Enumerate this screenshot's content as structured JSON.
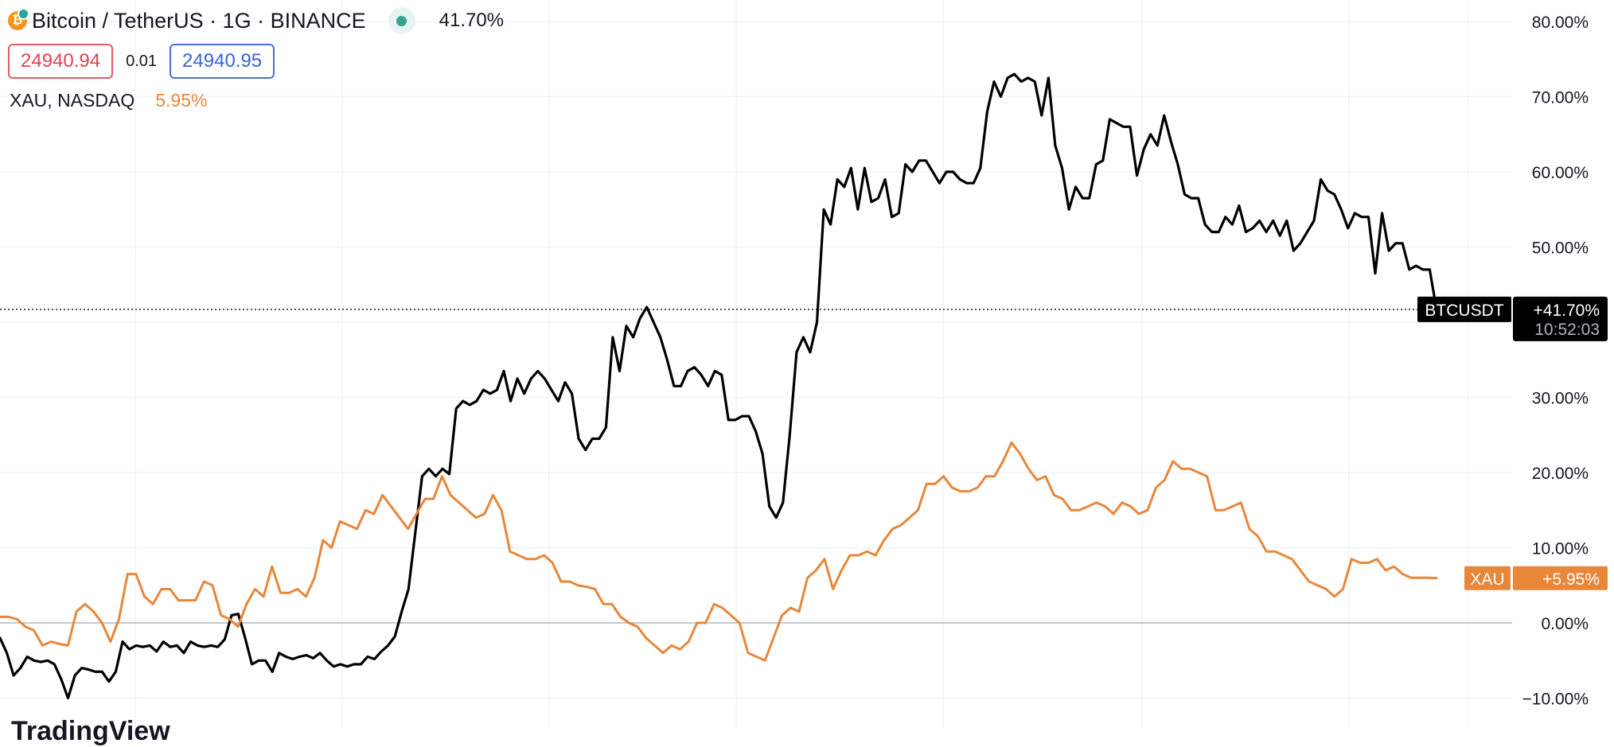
{
  "header": {
    "symbol_title": "Bitcoin / TetherUS · 1G · BINANCE",
    "change": "41.70%",
    "bid": "24940.94",
    "spread": "0.01",
    "ask": "24940.95",
    "compare_name": "XAU, NASDAQ",
    "compare_change": "5.95%",
    "btc_icon_glyph": "₿"
  },
  "watermark": "TradingView",
  "colors": {
    "btc": "#000000",
    "xau": "#e8873a",
    "grid": "#f0f3fa",
    "zero": "#b2b5be",
    "axis_text": "#131722"
  },
  "chart_data": {
    "type": "line",
    "yunit": "%",
    "ylim": [
      -10,
      80
    ],
    "yticks": [
      -10,
      0,
      10,
      20,
      30,
      40,
      50,
      60,
      70,
      80
    ],
    "ytick_labels": [
      "−10.00%",
      "0.00%",
      "10.00%",
      "20.00%",
      "30.00%",
      "40.00%",
      "50.00%",
      "60.00%",
      "70.00%",
      "80.00%"
    ],
    "series": [
      {
        "name": "BTCUSDT",
        "label": "BTCUSDT",
        "last_label": "+41.70%",
        "countdown": "10:52:03",
        "color": "#000000",
        "values": [
          -2,
          -4,
          -7,
          -6,
          -4.5,
          -5,
          -5.2,
          -5,
          -5.5,
          -7.5,
          -10,
          -7,
          -6,
          -6.2,
          -6.5,
          -6.5,
          -7.8,
          -6.5,
          -2.5,
          -3.5,
          -3,
          -3.2,
          -3,
          -3.8,
          -2.5,
          -3.2,
          -3,
          -4,
          -2.5,
          -3,
          -3.2,
          -3,
          -3.2,
          -2.2,
          1,
          1.2,
          -2,
          -5.5,
          -5,
          -5,
          -6.5,
          -4,
          -4.5,
          -4.8,
          -4.5,
          -4.3,
          -4.7,
          -4,
          -5,
          -5.8,
          -5.5,
          -5.8,
          -5.5,
          -5.5,
          -4.5,
          -4.8,
          -3.8,
          -3,
          -1.8,
          1.5,
          4.5,
          12,
          19.5,
          20.5,
          19.5,
          20.5,
          19.8,
          28.5,
          29.5,
          29,
          29.5,
          31,
          30.5,
          31,
          33.5,
          29.5,
          32.5,
          30.5,
          32.5,
          33.5,
          32.5,
          31,
          29.5,
          32,
          30.5,
          24.5,
          23,
          24.5,
          24.5,
          26,
          38,
          33.5,
          39.5,
          38,
          40.5,
          42,
          40,
          38,
          35,
          31.5,
          31.5,
          33.5,
          34,
          33,
          31.5,
          33.5,
          33,
          27,
          27,
          27.5,
          27.5,
          25.5,
          22.5,
          15.5,
          14,
          16,
          25,
          36,
          38,
          36,
          40,
          55,
          53,
          59,
          58,
          60.5,
          55,
          60.5,
          56,
          56.5,
          59,
          54,
          54.5,
          61,
          60,
          61.5,
          61.5,
          60,
          58.5,
          60,
          60,
          59,
          58.5,
          58.5,
          60.5,
          68,
          72,
          70,
          72.5,
          73,
          72,
          72.5,
          72,
          67.5,
          72.5,
          63.5,
          60.5,
          55,
          58,
          56.5,
          56.5,
          61,
          61.5,
          67,
          66.5,
          66,
          66,
          59.5,
          63,
          65,
          63.5,
          67.5,
          64,
          61,
          57,
          56.5,
          56.5,
          53,
          52,
          52,
          54,
          53,
          55.5,
          52,
          52.5,
          53.5,
          52,
          53.5,
          51.5,
          53.5,
          49.5,
          50.5,
          52,
          53.5,
          59,
          57.5,
          57,
          55,
          52.5,
          54.5,
          54,
          54,
          46.5,
          54.5,
          49.5,
          50.5,
          50.5,
          47,
          47.5,
          47,
          47,
          41.7
        ],
        "x_start": 0,
        "x_end": 1805
      },
      {
        "name": "XAU",
        "label": "XAU",
        "last_label": "+5.95%",
        "color": "#e8873a",
        "values": [
          0.8,
          0.8,
          0.5,
          -0.5,
          -1,
          -3,
          -2.5,
          -2.8,
          -3,
          1.5,
          2.5,
          1.5,
          0,
          -2.5,
          0.5,
          6.5,
          6.5,
          3.5,
          2.5,
          4.5,
          4.5,
          3,
          3,
          3,
          5.5,
          5,
          1,
          0.5,
          -0.5,
          2.5,
          4.5,
          3.5,
          7.5,
          4,
          4,
          4.5,
          3.5,
          6,
          11,
          10,
          13.5,
          13,
          12.5,
          15,
          14.5,
          17,
          15.5,
          14,
          12.5,
          14.5,
          16.5,
          16.5,
          19.5,
          17,
          16,
          15,
          14,
          14.5,
          17,
          15,
          9.5,
          9,
          8.5,
          8.5,
          9,
          8,
          5.5,
          5.5,
          5,
          4.8,
          4.5,
          2.5,
          2.5,
          0.8,
          0,
          -0.5,
          -2,
          -3,
          -4,
          -3,
          -3.5,
          -2.5,
          0,
          0,
          2.5,
          2,
          1,
          0,
          -4,
          -4.5,
          -5,
          -2,
          1,
          2,
          1.5,
          6,
          7,
          8.5,
          4.5,
          7,
          9,
          9,
          9.5,
          9,
          11,
          12.5,
          13,
          14,
          15,
          18.5,
          18.5,
          19.5,
          18,
          17.5,
          17.5,
          18,
          19.5,
          19.5,
          21.5,
          24,
          22.5,
          20.5,
          19,
          19.5,
          17,
          16.5,
          15,
          15,
          15.5,
          16,
          15.5,
          14.5,
          16,
          15.5,
          14.5,
          15,
          18,
          19,
          21.5,
          20.5,
          20.5,
          20,
          19.5,
          15,
          15,
          15.5,
          16,
          12.5,
          11.5,
          9.5,
          9.5,
          9,
          8.5,
          7,
          5.5,
          5,
          4.5,
          3.5,
          4.5,
          8.5,
          8,
          8,
          8.5,
          7,
          7.5,
          6.5,
          6,
          6,
          6,
          5.95
        ],
        "x_start": 0,
        "x_end": 1805
      }
    ]
  }
}
